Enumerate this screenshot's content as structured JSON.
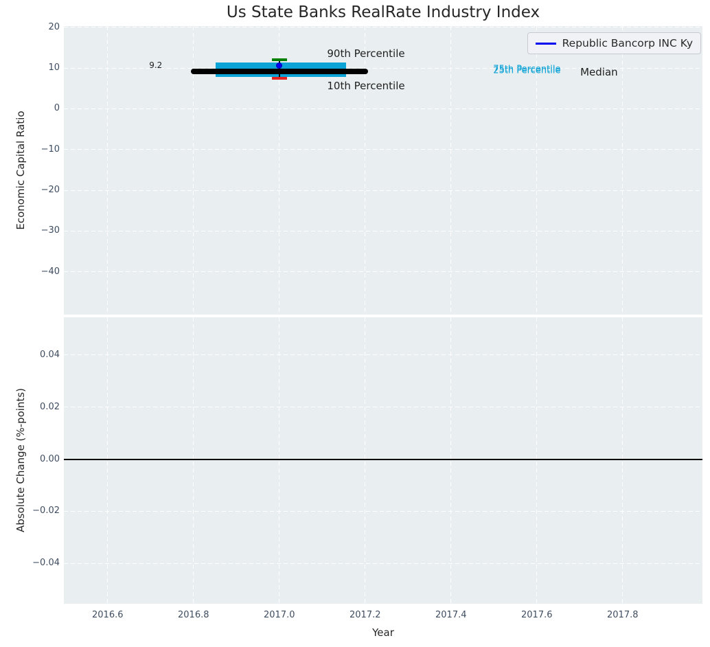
{
  "figure": {
    "bg": "#ffffff",
    "axes_bg": "#e9eef0",
    "grid_color": "#ffffff",
    "tick_label_color": "#3e4c60",
    "text_color": "#262626"
  },
  "title": {
    "text": "Us State Banks RealRate Industry Index"
  },
  "legend": {
    "label": "Republic Bancorp INC Ky",
    "line_color": "#0000f0",
    "position": "upper right"
  },
  "chart_data": [
    {
      "type": "box",
      "title": "Us State Banks RealRate Industry Index",
      "xlabel": "Year",
      "ylabel": "Economic Capital Ratio",
      "xlim": [
        2016.498,
        2017.986
      ],
      "ylim": [
        -50.5,
        20.3
      ],
      "grid": "white dashed",
      "xticks": [
        {
          "v": 2016.6,
          "label": "2016.6"
        },
        {
          "v": 2016.8,
          "label": "2016.8"
        },
        {
          "v": 2017.0,
          "label": "2017.0"
        },
        {
          "v": 2017.2,
          "label": "2017.2"
        },
        {
          "v": 2017.4,
          "label": "2017.4"
        },
        {
          "v": 2017.6,
          "label": "2017.6"
        },
        {
          "v": 2017.8,
          "label": "2017.8"
        }
      ],
      "yticks": [
        {
          "v": 20,
          "label": "20"
        },
        {
          "v": 10,
          "label": "10"
        },
        {
          "v": 0,
          "label": "0"
        },
        {
          "v": -10,
          "label": "−10"
        },
        {
          "v": -20,
          "label": "−20"
        },
        {
          "v": -30,
          "label": "−30"
        },
        {
          "v": -40,
          "label": "−40"
        }
      ],
      "industry_index": {
        "year": 2017.0,
        "median": {
          "value": 9.2,
          "x0": 2016.8,
          "x1": 2017.2,
          "color": "#000000",
          "linewidth": 8
        },
        "iqr_box": {
          "q1": 7.83,
          "q3": 11.33,
          "x0": 2016.852,
          "x1": 2017.155,
          "color": "#0ca3d6"
        },
        "p90": {
          "value": 12.0,
          "x0": 2016.982,
          "x1": 2017.018,
          "color": "#008000",
          "linewidth": 4
        },
        "p10": {
          "value": 7.42,
          "x0": 2016.982,
          "x1": 2017.018,
          "color": "#e32222",
          "linewidth": 4
        },
        "whisker": {
          "x": 2017.0,
          "y0": 7.42,
          "y1": 12.0,
          "color": "#000000",
          "linewidth": 2
        }
      },
      "company_point": {
        "name": "Republic Bancorp INC Ky",
        "x": 2017.0,
        "y": 10.67,
        "color": "#0000f0",
        "size": 9
      },
      "annotations": [
        {
          "text": "9.2",
          "x": 2016.712,
          "y": 10.75,
          "color": "#1f1f1f",
          "size": 12
        },
        {
          "text": "90th Percentile",
          "x": 2017.202,
          "y": 13.6,
          "color": "#1f1f1f",
          "size": 15
        },
        {
          "text": "10th Percentile",
          "x": 2017.202,
          "y": 5.6,
          "color": "#1f1f1f",
          "size": 15
        },
        {
          "text": "75th Percentile",
          "x": 2017.577,
          "y": 9.6,
          "color": "#0ca3d6",
          "size": 13
        },
        {
          "text": "25th Percentile",
          "x": 2017.577,
          "y": 9.32,
          "color": "#0ca3d6",
          "size": 13
        },
        {
          "text": "Median",
          "x": 2017.745,
          "y": 9.0,
          "color": "#1f1f1f",
          "size": 15
        }
      ]
    },
    {
      "type": "line",
      "xlabel": "Year",
      "ylabel": "Absolute Change (%-points)",
      "xlim": [
        2016.498,
        2017.986
      ],
      "ylim": [
        -0.0555,
        0.0545
      ],
      "grid": "white dashed",
      "xticks": [
        {
          "v": 2016.6,
          "label": "2016.6"
        },
        {
          "v": 2016.8,
          "label": "2016.8"
        },
        {
          "v": 2017.0,
          "label": "2017.0"
        },
        {
          "v": 2017.2,
          "label": "2017.2"
        },
        {
          "v": 2017.4,
          "label": "2017.4"
        },
        {
          "v": 2017.6,
          "label": "2017.6"
        },
        {
          "v": 2017.8,
          "label": "2017.8"
        }
      ],
      "yticks": [
        {
          "v": 0.04,
          "label": "0.04"
        },
        {
          "v": 0.02,
          "label": "0.02"
        },
        {
          "v": 0.0,
          "label": "0.00"
        },
        {
          "v": -0.02,
          "label": "−0.02"
        },
        {
          "v": -0.04,
          "label": "−0.04"
        }
      ],
      "zero_line": {
        "y": 0.0,
        "color": "#000000",
        "linewidth": 2
      }
    }
  ]
}
